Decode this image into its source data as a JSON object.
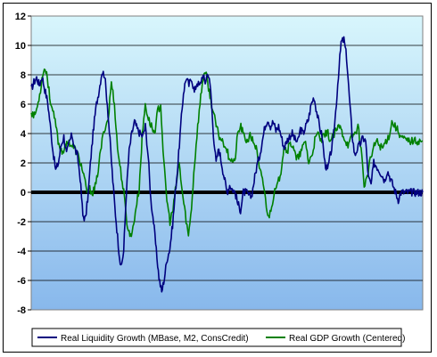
{
  "chart_data": {
    "type": "line",
    "title": "",
    "xlabel": "",
    "ylabel": "",
    "ylim": [
      -8,
      12
    ],
    "yticks": [
      -8,
      -6,
      -4,
      -2,
      0,
      2,
      4,
      6,
      8,
      10,
      12
    ],
    "ytick_labels": [
      "-8",
      "-6",
      "-4",
      "-2",
      "0",
      "2",
      "4",
      "6",
      "8",
      "10",
      "12"
    ],
    "grid": true,
    "legend_position": "bottom",
    "background": {
      "top": "#d8f6fc",
      "bottom": "#88b8ec"
    },
    "zero_line_color": "#000000",
    "series": [
      {
        "name": "Real Liquidity Growth (MBase, M2, ConsCredit)",
        "color": "#00007f",
        "x": [
          0,
          1,
          2,
          3,
          4,
          5,
          6,
          7,
          8,
          9,
          10,
          11,
          12,
          13,
          14,
          15,
          16,
          17,
          18,
          19,
          20,
          21,
          22,
          23,
          24,
          25,
          26,
          27,
          28,
          29,
          30,
          31,
          32,
          33,
          34,
          35,
          36,
          37,
          38,
          39,
          40,
          41,
          42,
          43,
          44,
          45,
          46,
          47,
          48,
          49,
          50,
          51,
          52,
          53,
          54,
          55,
          56,
          57,
          58,
          59,
          60,
          61,
          62,
          63,
          64,
          65,
          66,
          67,
          68,
          69,
          70,
          71,
          72,
          73,
          74,
          75,
          76,
          77,
          78,
          79,
          80,
          81,
          82,
          83,
          84,
          85,
          86,
          87,
          88,
          89,
          90,
          91,
          92,
          93,
          94,
          95,
          96,
          97,
          98,
          99,
          100,
          101,
          102,
          103,
          104,
          105,
          106,
          107,
          108,
          109,
          110,
          111,
          112,
          113,
          114,
          115,
          116,
          117,
          118,
          119,
          120,
          121,
          122,
          123,
          124,
          125,
          126,
          127,
          128,
          129,
          130,
          131,
          132,
          133,
          134,
          135,
          136,
          137,
          138,
          139,
          140,
          141,
          142,
          143,
          144
        ],
        "values": [
          7.0,
          7.5,
          7.8,
          7.3,
          7.9,
          7.0,
          6.2,
          4.6,
          2.8,
          1.5,
          2.0,
          3.2,
          3.8,
          2.6,
          3.4,
          3.9,
          3.0,
          2.5,
          1.0,
          -1.6,
          -1.8,
          0.0,
          2.5,
          4.5,
          6.0,
          7.0,
          8.2,
          8.0,
          6.0,
          3.5,
          0.8,
          -1.5,
          -3.5,
          -5.2,
          -4.0,
          0.0,
          2.8,
          4.0,
          4.8,
          4.3,
          4.0,
          3.8,
          4.5,
          2.5,
          -0.5,
          -2.0,
          -4.0,
          -5.8,
          -6.8,
          -5.8,
          -4.5,
          -3.8,
          -2.2,
          0.0,
          2.0,
          4.5,
          6.8,
          7.8,
          7.3,
          7.8,
          6.8,
          7.5,
          7.2,
          8.0,
          7.5,
          8.2,
          7.0,
          4.0,
          2.0,
          3.0,
          2.0,
          1.0,
          0.0,
          0.5,
          0.2,
          0.0,
          -0.8,
          -1.2,
          0.0,
          0.0,
          -0.2,
          -0.3,
          0.8,
          1.8,
          2.5,
          3.5,
          4.5,
          5.0,
          4.5,
          4.8,
          4.2,
          4.5,
          3.8,
          3.0,
          3.5,
          3.8,
          4.0,
          3.6,
          3.4,
          4.3,
          4.0,
          4.5,
          5.0,
          6.0,
          6.5,
          5.5,
          4.5,
          3.8,
          2.0,
          1.5,
          2.5,
          3.5,
          5.5,
          8.0,
          10.2,
          10.4,
          9.2,
          6.5,
          4.0,
          2.5,
          3.0,
          3.3,
          3.7,
          3.5,
          1.0,
          0.5,
          2.0,
          1.8,
          1.5,
          1.2,
          0.8,
          1.5,
          1.0,
          0.5,
          0.0,
          -0.5,
          0.0,
          0.0,
          0.0,
          0.0,
          0.0,
          0.0,
          0.0,
          0.0,
          0.0
        ],
        "x_end": 131
      },
      {
        "name": "Real GDP Growth (Centered)",
        "color": "#008000",
        "x": [
          0,
          1,
          2,
          3,
          4,
          5,
          6,
          7,
          8,
          9,
          10,
          11,
          12,
          13,
          14,
          15,
          16,
          17,
          18,
          19,
          20,
          21,
          22,
          23,
          24,
          25,
          26,
          27,
          28,
          29,
          30,
          31,
          32,
          33,
          34,
          35,
          36,
          37,
          38,
          39,
          40,
          41,
          42,
          43,
          44,
          45,
          46,
          47,
          48,
          49,
          50,
          51,
          52,
          53,
          54,
          55,
          56,
          57,
          58,
          59,
          60,
          61,
          62,
          63,
          64,
          65,
          66,
          67,
          68,
          69,
          70,
          71,
          72,
          73,
          74,
          75,
          76,
          77,
          78,
          79,
          80,
          81,
          82,
          83,
          84,
          85,
          86,
          87,
          88,
          89,
          90,
          91,
          92,
          93,
          94,
          95,
          96,
          97,
          98,
          99,
          100,
          101,
          102,
          103,
          104,
          105,
          106,
          107,
          108,
          109,
          110,
          111,
          112,
          113,
          114,
          115,
          116,
          117,
          118,
          119,
          120,
          121,
          122,
          123,
          124,
          125,
          126,
          127
        ],
        "values": [
          5.5,
          5.2,
          5.8,
          7.0,
          8.4,
          8.2,
          6.5,
          5.5,
          4.5,
          3.2,
          2.8,
          3.0,
          3.5,
          3.2,
          3.0,
          2.6,
          2.0,
          1.2,
          0.0,
          0.2,
          0.0,
          0.5,
          2.0,
          3.5,
          4.5,
          5.0,
          7.5,
          6.0,
          3.0,
          1.5,
          0.0,
          -2.0,
          -3.0,
          -2.5,
          -1.0,
          0.2,
          3.8,
          6.0,
          5.0,
          4.5,
          4.0,
          5.5,
          6.0,
          2.0,
          -0.5,
          -2.0,
          -1.2,
          0.5,
          2.0,
          0.0,
          -1.5,
          -3.0,
          -1.0,
          2.0,
          4.5,
          6.5,
          8.2,
          7.8,
          6.5,
          5.5,
          4.5,
          3.8,
          3.5,
          3.2,
          2.5,
          2.2,
          2.0,
          4.0,
          4.5,
          3.8,
          3.5,
          3.8,
          3.5,
          3.0,
          1.5,
          1.0,
          -0.5,
          -1.8,
          -0.8,
          0.0,
          0.5,
          1.5,
          3.2,
          2.8,
          3.3,
          3.2,
          2.2,
          2.5,
          3.0,
          3.5,
          2.0,
          2.5,
          3.5,
          4.0,
          3.5,
          3.8,
          4.2,
          3.5,
          3.8,
          4.2,
          4.5,
          4.0,
          3.5,
          3.2,
          3.8,
          4.0,
          4.5,
          3.0,
          0.5,
          1.0,
          2.2,
          3.0,
          3.5,
          3.2,
          3.0,
          3.5,
          3.8,
          4.8,
          4.5,
          4.2,
          3.8,
          3.6,
          3.5,
          3.5,
          3.5,
          3.5,
          3.5,
          3.5
        ],
        "x_end": 127
      }
    ]
  }
}
